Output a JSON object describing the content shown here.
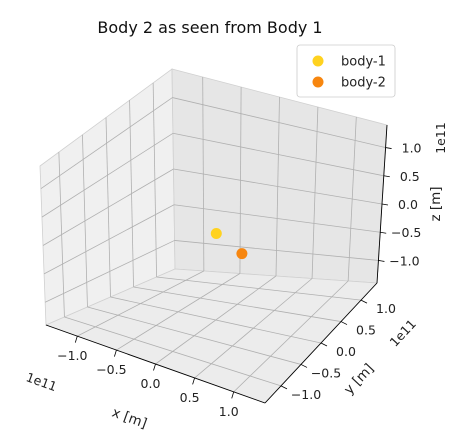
{
  "chart_data": {
    "type": "scatter",
    "projection": "3d",
    "title": "Body 2 as seen from Body 1",
    "xlabel": "x [m]",
    "ylabel": "y [m]",
    "zlabel": "z [m]",
    "offset_label": "1e11",
    "xlim": [
      -140000000000.0,
      140000000000.0
    ],
    "ylim": [
      -140000000000.0,
      140000000000.0
    ],
    "zlim": [
      -140000000000.0,
      140000000000.0
    ],
    "xticks": [
      "−1.0",
      "−0.5",
      "0.0",
      "0.5",
      "1.0"
    ],
    "yticks": [
      "−1.0",
      "−0.5",
      "0.0",
      "0.5",
      "1.0"
    ],
    "zticks": [
      "−1.0",
      "−0.5",
      "0.0",
      "0.5",
      "1.0"
    ],
    "grid": true,
    "legend_position": "top-right",
    "series": [
      {
        "name": "body-1",
        "color": "#ffd21f",
        "points": [
          {
            "x": 0,
            "y": 0,
            "z": 0
          }
        ]
      },
      {
        "name": "body-2",
        "color": "#f7860f",
        "points": [
          {
            "x": 50000000000.0,
            "y": -30000000000.0,
            "z": 0
          }
        ]
      }
    ]
  }
}
